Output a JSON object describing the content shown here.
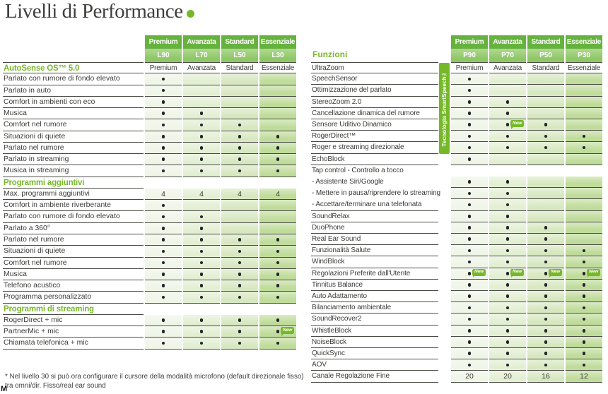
{
  "page": {
    "title": "Livelli di Performance",
    "footnote_line1": "* Nel livello 30 si può ora configurare il cursore della modalità microfono (default direzionale fisso)",
    "footnote_line2": "tra omni/dir. Fisso/real ear sound",
    "artifact": "M"
  },
  "badge_label": "New",
  "colors": {
    "accent_green": "#76b82a",
    "header_top_green": "#66b23e",
    "header_bottom_green": "#8fc765",
    "column_fills": [
      "#eff5e7",
      "#e3efd3",
      "#d7e8c1",
      "#c0dc9b"
    ],
    "line": "#4a4a46",
    "text": "#3a3a38"
  },
  "left_table": {
    "columns": [
      {
        "level": "Premium",
        "code": "L90"
      },
      {
        "level": "Avanzata",
        "code": "L70"
      },
      {
        "level": "Standard",
        "code": "L50"
      },
      {
        "level": "Essenziale",
        "code": "L30"
      }
    ],
    "rows": [
      {
        "label": "AutoSense OS™ 5.0",
        "green": true,
        "text_cells": true,
        "cells": [
          "Premium",
          "Avanzata",
          "Standard",
          "Essenziale"
        ]
      },
      {
        "label": "Parlato con rumore di fondo elevato",
        "cells": [
          "D",
          "",
          "",
          ""
        ]
      },
      {
        "label": "Parlato in auto",
        "cells": [
          "D",
          "",
          "",
          ""
        ]
      },
      {
        "label": "Comfort in ambienti con eco",
        "cells": [
          "D",
          "",
          "",
          ""
        ]
      },
      {
        "label": "Musica",
        "cells": [
          "D",
          "D",
          "",
          ""
        ]
      },
      {
        "label": "Comfort nel rumore",
        "cells": [
          "D",
          "D",
          "D",
          ""
        ]
      },
      {
        "label": "Situazioni di quiete",
        "cells": [
          "D",
          "D",
          "D",
          "D"
        ]
      },
      {
        "label": "Parlato nel rumore",
        "cells": [
          "D",
          "D",
          "D",
          "D"
        ]
      },
      {
        "label": "Parlato in streaming",
        "cells": [
          "D",
          "D",
          "D",
          "D"
        ]
      },
      {
        "label": "Musica in streaming",
        "cells": [
          "D",
          "D",
          "D",
          "D"
        ]
      },
      {
        "label": "Programmi aggiuntivi",
        "green": true,
        "cells": null
      },
      {
        "label": "Max. programmi aggiuntivi",
        "cells": [
          "4",
          "4",
          "4",
          "4"
        ]
      },
      {
        "label": "Comfort in ambiente riverberante",
        "cells": [
          "D",
          "",
          "",
          ""
        ]
      },
      {
        "label": "Parlato con rumore di fondo elevato",
        "cells": [
          "D",
          "D",
          "",
          ""
        ]
      },
      {
        "label": "Parlato a 360°",
        "cells": [
          "D",
          "D",
          "",
          ""
        ]
      },
      {
        "label": "Parlato nel rumore",
        "cells": [
          "D",
          "D",
          "D",
          "D"
        ]
      },
      {
        "label": "Situazioni di quiete",
        "cells": [
          "D",
          "D",
          "D",
          "D"
        ]
      },
      {
        "label": "Comfort nel rumore",
        "cells": [
          "D",
          "D",
          "D",
          "D"
        ]
      },
      {
        "label": "Musica",
        "cells": [
          "D",
          "D",
          "D",
          "D"
        ]
      },
      {
        "label": "Telefono acustico",
        "cells": [
          "D",
          "D",
          "D",
          "D"
        ]
      },
      {
        "label": "Programma personalizzato",
        "cells": [
          "D",
          "D",
          "D",
          "D"
        ]
      },
      {
        "label": "Programmi di streaming",
        "green": true,
        "cells": null
      },
      {
        "label": "RogerDirect + mic",
        "cells": [
          "D",
          "D",
          "D",
          "D"
        ]
      },
      {
        "label": "PartnerMic + mic",
        "cells": [
          "D",
          "D",
          "D",
          "D"
        ],
        "new": [
          3
        ]
      },
      {
        "label": "Chiamata telefonica + mic",
        "cells": [
          "D",
          "D",
          "D",
          "D"
        ]
      }
    ]
  },
  "right_table": {
    "section_label": "Funzioni",
    "tech_bar_label": "Tecnologia SmartSpeech™",
    "columns": [
      {
        "level": "Premium",
        "code": "P90"
      },
      {
        "level": "Avanzata",
        "code": "P70"
      },
      {
        "level": "Standard",
        "code": "P50"
      },
      {
        "level": "Essenziale",
        "code": "P30"
      }
    ],
    "rows": [
      {
        "label": "UltraZoom",
        "text_cells": true,
        "cells": [
          "Premium",
          "Avanzata",
          "Standard",
          "Essenziale"
        ]
      },
      {
        "label": "SpeechSensor",
        "cells": [
          "D",
          "",
          "",
          ""
        ]
      },
      {
        "label": "Ottimizzazione del parlato",
        "cells": [
          "D",
          "",
          "",
          ""
        ]
      },
      {
        "label": "StereoZoom 2.0",
        "cells": [
          "D",
          "D",
          "",
          ""
        ]
      },
      {
        "label": "Cancellazione dinamica del rumore",
        "cells": [
          "D",
          "D",
          "",
          ""
        ]
      },
      {
        "label": "Sensore Uditivo Dinamico",
        "cells": [
          "D",
          "D",
          "D",
          ""
        ],
        "new": [
          1
        ]
      },
      {
        "label": "RogerDirect™",
        "cells": [
          "D",
          "D",
          "D",
          "D"
        ]
      },
      {
        "label": "Roger e streaming direzionale",
        "cells": [
          "D",
          "D",
          "D",
          "D"
        ]
      },
      {
        "label": "EchoBlock",
        "cells": [
          "D",
          "",
          "",
          ""
        ]
      },
      {
        "label": "Tap control - Controllo a tocco",
        "no_line": true,
        "cells": null
      },
      {
        "label": "- Assistente Siri/Google",
        "no_line": true,
        "cells": [
          "D",
          "D",
          "",
          ""
        ]
      },
      {
        "label": "- Mettere in pausa/riprendere lo streaming",
        "no_line": true,
        "cells": [
          "D",
          "D",
          "",
          ""
        ]
      },
      {
        "label": "- Accettare/terminare una telefonata",
        "cells": [
          "D",
          "D",
          "",
          ""
        ]
      },
      {
        "label": "SoundRelax",
        "cells": [
          "D",
          "D",
          "",
          ""
        ]
      },
      {
        "label": "DuoPhone",
        "cells": [
          "D",
          "D",
          "D",
          ""
        ]
      },
      {
        "label": "Real Ear Sound",
        "cells": [
          "D",
          "D",
          "D",
          ""
        ]
      },
      {
        "label": "Funzionalità Salute",
        "cells": [
          "D",
          "D",
          "D",
          "D"
        ]
      },
      {
        "label": "WindBlock",
        "cells": [
          "D",
          "D",
          "D",
          "D"
        ]
      },
      {
        "label": "Regolazioni Preferite dall'Utente",
        "cells": [
          "D",
          "D",
          "D",
          "D"
        ],
        "new": [
          0,
          1,
          2,
          3
        ]
      },
      {
        "label": "Tinnitus Balance",
        "cells": [
          "D",
          "D",
          "D",
          "D"
        ]
      },
      {
        "label": "Auto Adattamento",
        "cells": [
          "D",
          "D",
          "D",
          "D"
        ]
      },
      {
        "label": "Bilanciamento ambientale",
        "cells": [
          "D",
          "D",
          "D",
          "D"
        ]
      },
      {
        "label": "SoundRecover2",
        "cells": [
          "D",
          "D",
          "D",
          "D"
        ]
      },
      {
        "label": "WhistleBlock",
        "cells": [
          "D",
          "D",
          "D",
          "D"
        ]
      },
      {
        "label": "NoiseBlock",
        "cells": [
          "D",
          "D",
          "D",
          "D"
        ]
      },
      {
        "label": "QuickSync",
        "cells": [
          "D",
          "D",
          "D",
          "D"
        ]
      },
      {
        "label": "AOV",
        "cells": [
          "D",
          "D",
          "D",
          "D"
        ]
      },
      {
        "label": "Canale Regolazione Fine",
        "cells": [
          "20",
          "20",
          "16",
          "12"
        ]
      }
    ]
  }
}
